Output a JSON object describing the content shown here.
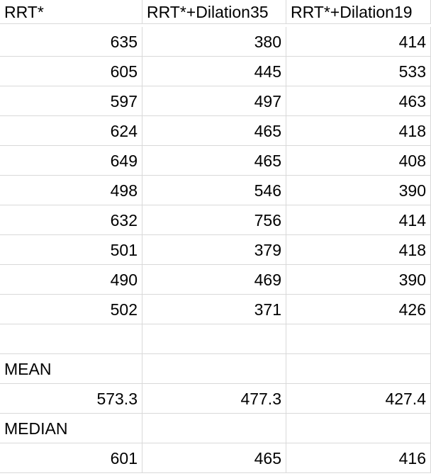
{
  "headers": [
    "RRT*",
    "RRT*+Dilation35",
    "RRT*+Dilation19"
  ],
  "rows": [
    [
      "635",
      "380",
      "414"
    ],
    [
      "605",
      "445",
      "533"
    ],
    [
      "597",
      "497",
      "463"
    ],
    [
      "624",
      "465",
      "418"
    ],
    [
      "649",
      "465",
      "408"
    ],
    [
      "498",
      "546",
      "390"
    ],
    [
      "632",
      "756",
      "414"
    ],
    [
      "501",
      "379",
      "418"
    ],
    [
      "490",
      "469",
      "390"
    ],
    [
      "502",
      "371",
      "426"
    ]
  ],
  "summary": {
    "mean_label": "MEAN",
    "mean_values": [
      "573.3",
      "477.3",
      "427.4"
    ],
    "median_label": "MEDIAN",
    "median_values": [
      "601",
      "465",
      "416"
    ]
  }
}
